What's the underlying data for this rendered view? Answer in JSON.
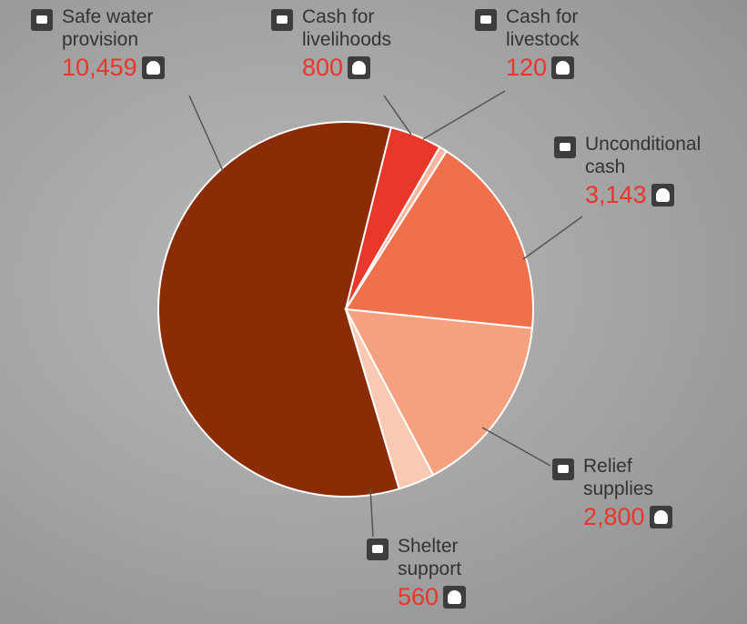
{
  "chart_data": {
    "type": "pie",
    "categories": [
      "Safe water provision",
      "Cash for livelihoods",
      "Cash for livestock",
      "Unconditional cash",
      "Relief supplies",
      "Shelter support"
    ],
    "values": [
      10459,
      800,
      120,
      3143,
      2800,
      560
    ],
    "value_labels": [
      "10,459",
      "800",
      "120",
      "3,143",
      "2,800",
      "560"
    ],
    "colors": [
      "#8a2c06",
      "#e8382b",
      "#f6b6a0",
      "#f0704c",
      "#f5a07e",
      "#fac9b3"
    ]
  }
}
